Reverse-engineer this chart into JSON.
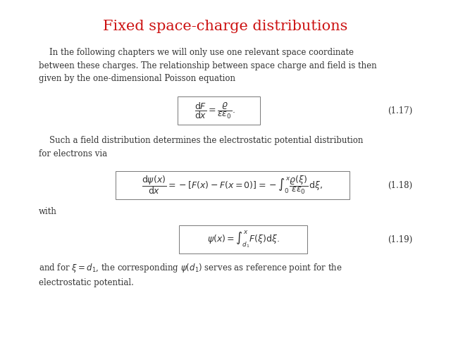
{
  "title": "Fixed space-charge distributions",
  "title_color": "#cc1111",
  "title_fontsize": 15,
  "bg_color": "#ffffff",
  "body_color": "#333333",
  "body_fontsize": 8.5,
  "eq_fontsize": 9,
  "label_fontsize": 8.5,
  "eq1_label": "(1.17)",
  "eq2_label": "(1.18)",
  "eq3_label": "(1.19)",
  "with_text": "with"
}
